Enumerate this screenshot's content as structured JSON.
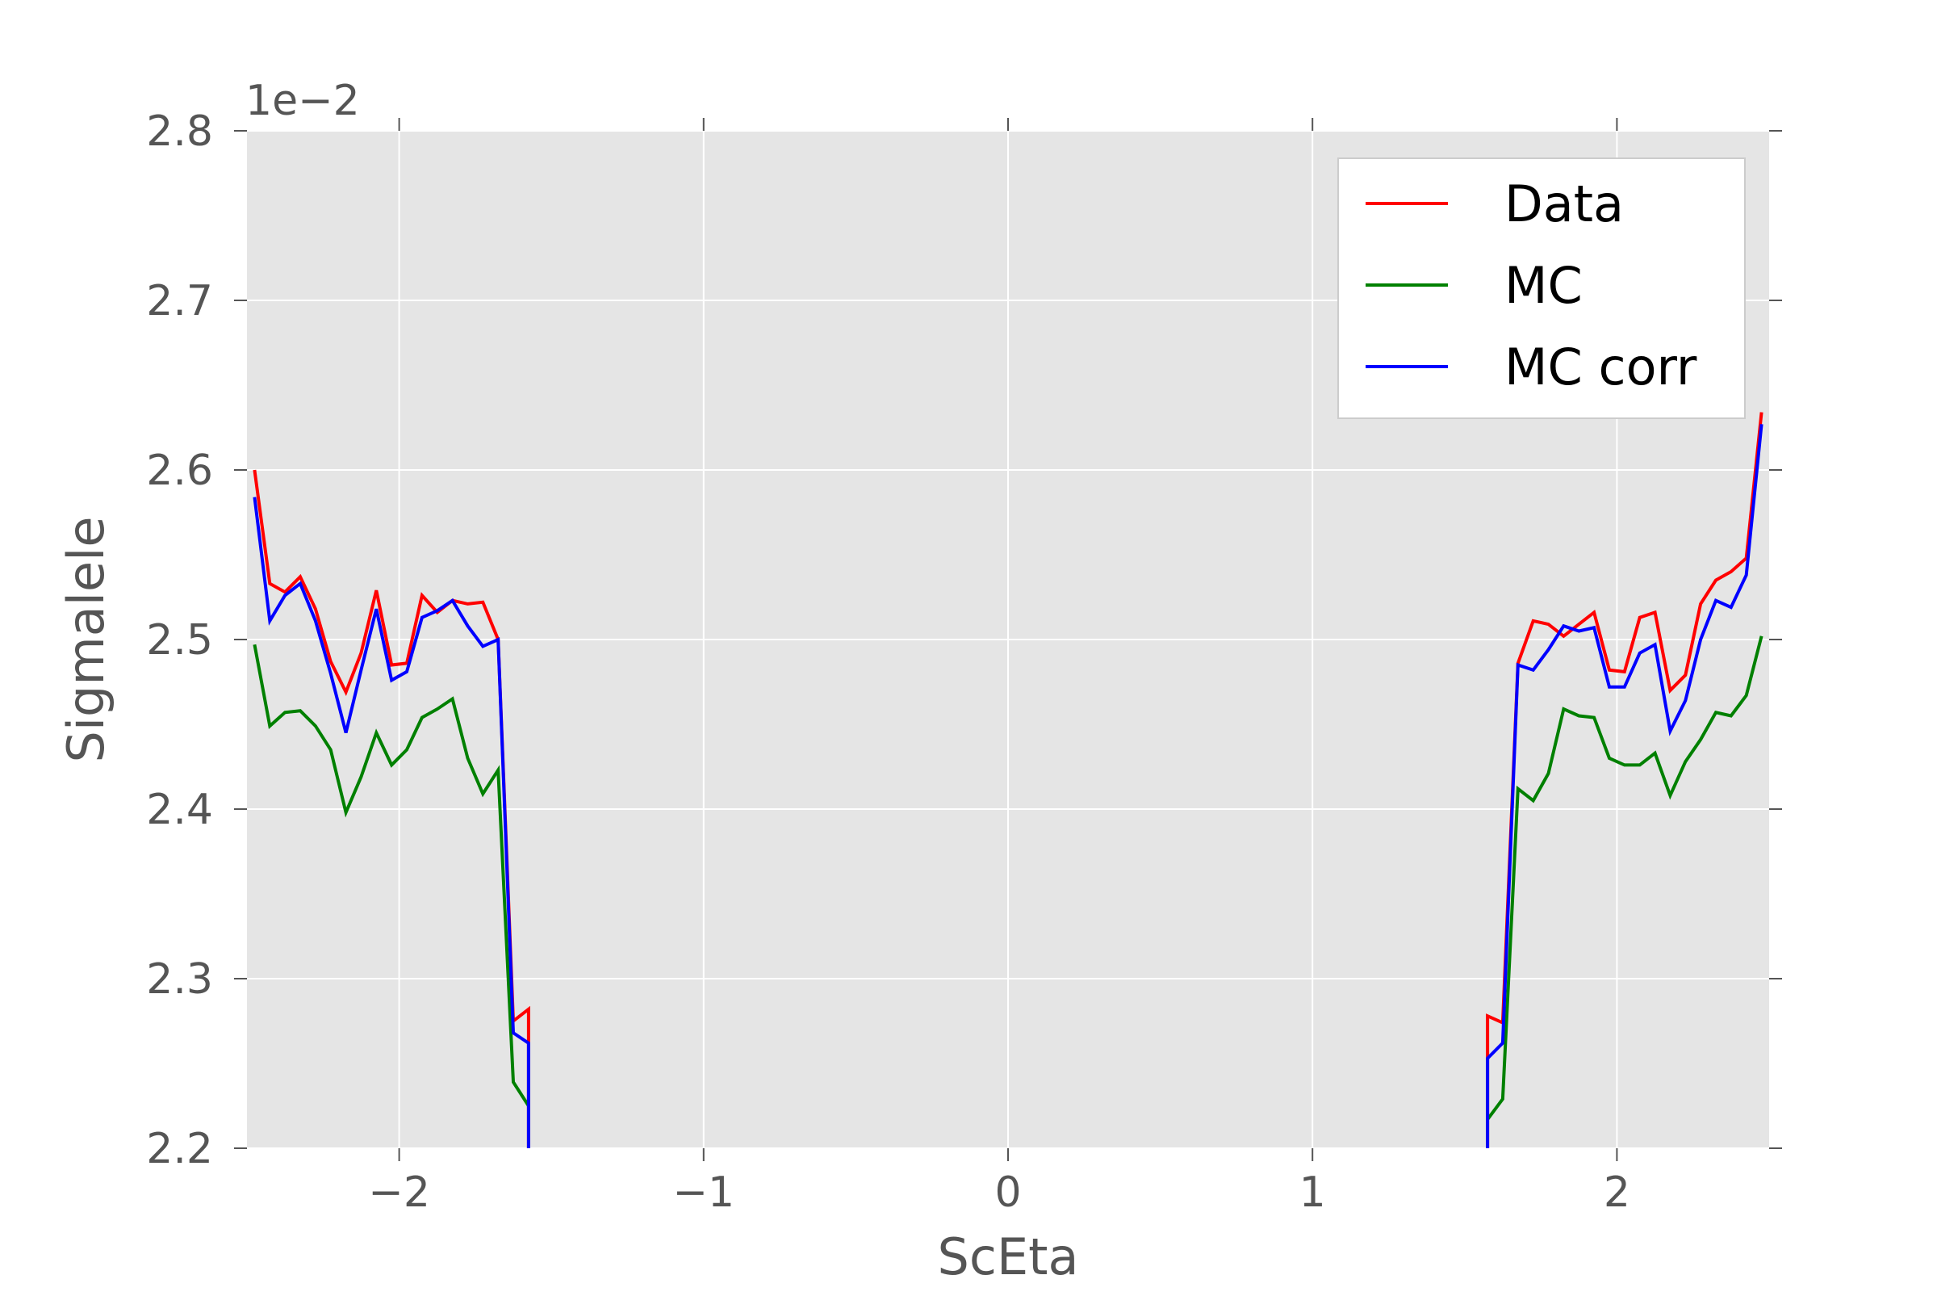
{
  "chart_data": {
    "type": "line",
    "title": "",
    "xlabel": "ScEta",
    "ylabel": "Sigmalele",
    "offset_label": "1e−2",
    "xlim": [
      -2.5,
      2.5
    ],
    "ylim": [
      2.2,
      2.8
    ],
    "xticks": [
      -2,
      -1,
      0,
      1,
      2
    ],
    "xtick_labels": [
      "−2",
      "−1",
      "0",
      "1",
      "2"
    ],
    "yticks": [
      2.2,
      2.3,
      2.4,
      2.5,
      2.6,
      2.7,
      2.8
    ],
    "ytick_labels": [
      "2.2",
      "2.3",
      "2.4",
      "2.5",
      "2.6",
      "2.7",
      "2.8"
    ],
    "grid": true,
    "legend_position": "top-right",
    "series": [
      {
        "name": "Data",
        "color": "#ff0000",
        "segments": [
          [
            [
              -2.475,
              2.6
            ],
            [
              -2.425,
              2.533
            ],
            [
              -2.375,
              2.528
            ],
            [
              -2.325,
              2.537
            ],
            [
              -2.275,
              2.518
            ],
            [
              -2.225,
              2.487
            ],
            [
              -2.175,
              2.469
            ],
            [
              -2.125,
              2.492
            ],
            [
              -2.075,
              2.529
            ],
            [
              -2.025,
              2.485
            ],
            [
              -1.975,
              2.486
            ],
            [
              -1.925,
              2.526
            ],
            [
              -1.875,
              2.516
            ],
            [
              -1.825,
              2.523
            ],
            [
              -1.775,
              2.521
            ],
            [
              -1.725,
              2.522
            ],
            [
              -1.675,
              2.5
            ],
            [
              -1.625,
              2.275
            ],
            [
              -1.575,
              2.282
            ],
            [
              -1.575,
              2.2
            ]
          ],
          [
            [
              1.575,
              2.2
            ],
            [
              1.575,
              2.278
            ],
            [
              1.625,
              2.274
            ],
            [
              1.675,
              2.486
            ],
            [
              1.725,
              2.511
            ],
            [
              1.775,
              2.509
            ],
            [
              1.825,
              2.502
            ],
            [
              1.875,
              2.509
            ],
            [
              1.925,
              2.516
            ],
            [
              1.975,
              2.482
            ],
            [
              2.025,
              2.481
            ],
            [
              2.075,
              2.513
            ],
            [
              2.125,
              2.516
            ],
            [
              2.175,
              2.47
            ],
            [
              2.225,
              2.479
            ],
            [
              2.275,
              2.521
            ],
            [
              2.325,
              2.535
            ],
            [
              2.375,
              2.54
            ],
            [
              2.425,
              2.548
            ],
            [
              2.475,
              2.634
            ]
          ]
        ]
      },
      {
        "name": "MC",
        "color": "#008000",
        "segments": [
          [
            [
              -2.475,
              2.497
            ],
            [
              -2.425,
              2.449
            ],
            [
              -2.375,
              2.457
            ],
            [
              -2.325,
              2.458
            ],
            [
              -2.275,
              2.449
            ],
            [
              -2.225,
              2.435
            ],
            [
              -2.175,
              2.398
            ],
            [
              -2.125,
              2.419
            ],
            [
              -2.075,
              2.445
            ],
            [
              -2.025,
              2.426
            ],
            [
              -1.975,
              2.435
            ],
            [
              -1.925,
              2.454
            ],
            [
              -1.875,
              2.459
            ],
            [
              -1.825,
              2.465
            ],
            [
              -1.775,
              2.43
            ],
            [
              -1.725,
              2.409
            ],
            [
              -1.675,
              2.423
            ],
            [
              -1.625,
              2.239
            ],
            [
              -1.575,
              2.225
            ]
          ],
          [
            [
              1.575,
              2.217
            ],
            [
              1.625,
              2.229
            ],
            [
              1.675,
              2.412
            ],
            [
              1.725,
              2.405
            ],
            [
              1.775,
              2.421
            ],
            [
              1.825,
              2.459
            ],
            [
              1.875,
              2.455
            ],
            [
              1.925,
              2.454
            ],
            [
              1.975,
              2.43
            ],
            [
              2.025,
              2.426
            ],
            [
              2.075,
              2.426
            ],
            [
              2.125,
              2.433
            ],
            [
              2.175,
              2.408
            ],
            [
              2.225,
              2.428
            ],
            [
              2.275,
              2.441
            ],
            [
              2.325,
              2.457
            ],
            [
              2.375,
              2.455
            ],
            [
              2.425,
              2.467
            ],
            [
              2.475,
              2.502
            ]
          ]
        ]
      },
      {
        "name": "MC corr",
        "color": "#0000ff",
        "segments": [
          [
            [
              -2.475,
              2.584
            ],
            [
              -2.425,
              2.511
            ],
            [
              -2.375,
              2.526
            ],
            [
              -2.325,
              2.533
            ],
            [
              -2.275,
              2.511
            ],
            [
              -2.225,
              2.48
            ],
            [
              -2.175,
              2.445
            ],
            [
              -2.125,
              2.482
            ],
            [
              -2.075,
              2.518
            ],
            [
              -2.025,
              2.476
            ],
            [
              -1.975,
              2.481
            ],
            [
              -1.925,
              2.513
            ],
            [
              -1.875,
              2.517
            ],
            [
              -1.825,
              2.523
            ],
            [
              -1.775,
              2.508
            ],
            [
              -1.725,
              2.496
            ],
            [
              -1.675,
              2.5
            ],
            [
              -1.625,
              2.268
            ],
            [
              -1.575,
              2.262
            ],
            [
              -1.575,
              2.2
            ]
          ],
          [
            [
              1.575,
              2.2
            ],
            [
              1.575,
              2.253
            ],
            [
              1.625,
              2.262
            ],
            [
              1.675,
              2.485
            ],
            [
              1.725,
              2.482
            ],
            [
              1.775,
              2.494
            ],
            [
              1.825,
              2.508
            ],
            [
              1.875,
              2.505
            ],
            [
              1.925,
              2.507
            ],
            [
              1.975,
              2.472
            ],
            [
              2.025,
              2.472
            ],
            [
              2.075,
              2.492
            ],
            [
              2.125,
              2.497
            ],
            [
              2.175,
              2.446
            ],
            [
              2.225,
              2.464
            ],
            [
              2.275,
              2.5
            ],
            [
              2.325,
              2.523
            ],
            [
              2.375,
              2.519
            ],
            [
              2.425,
              2.538
            ],
            [
              2.475,
              2.627
            ]
          ]
        ]
      }
    ]
  }
}
